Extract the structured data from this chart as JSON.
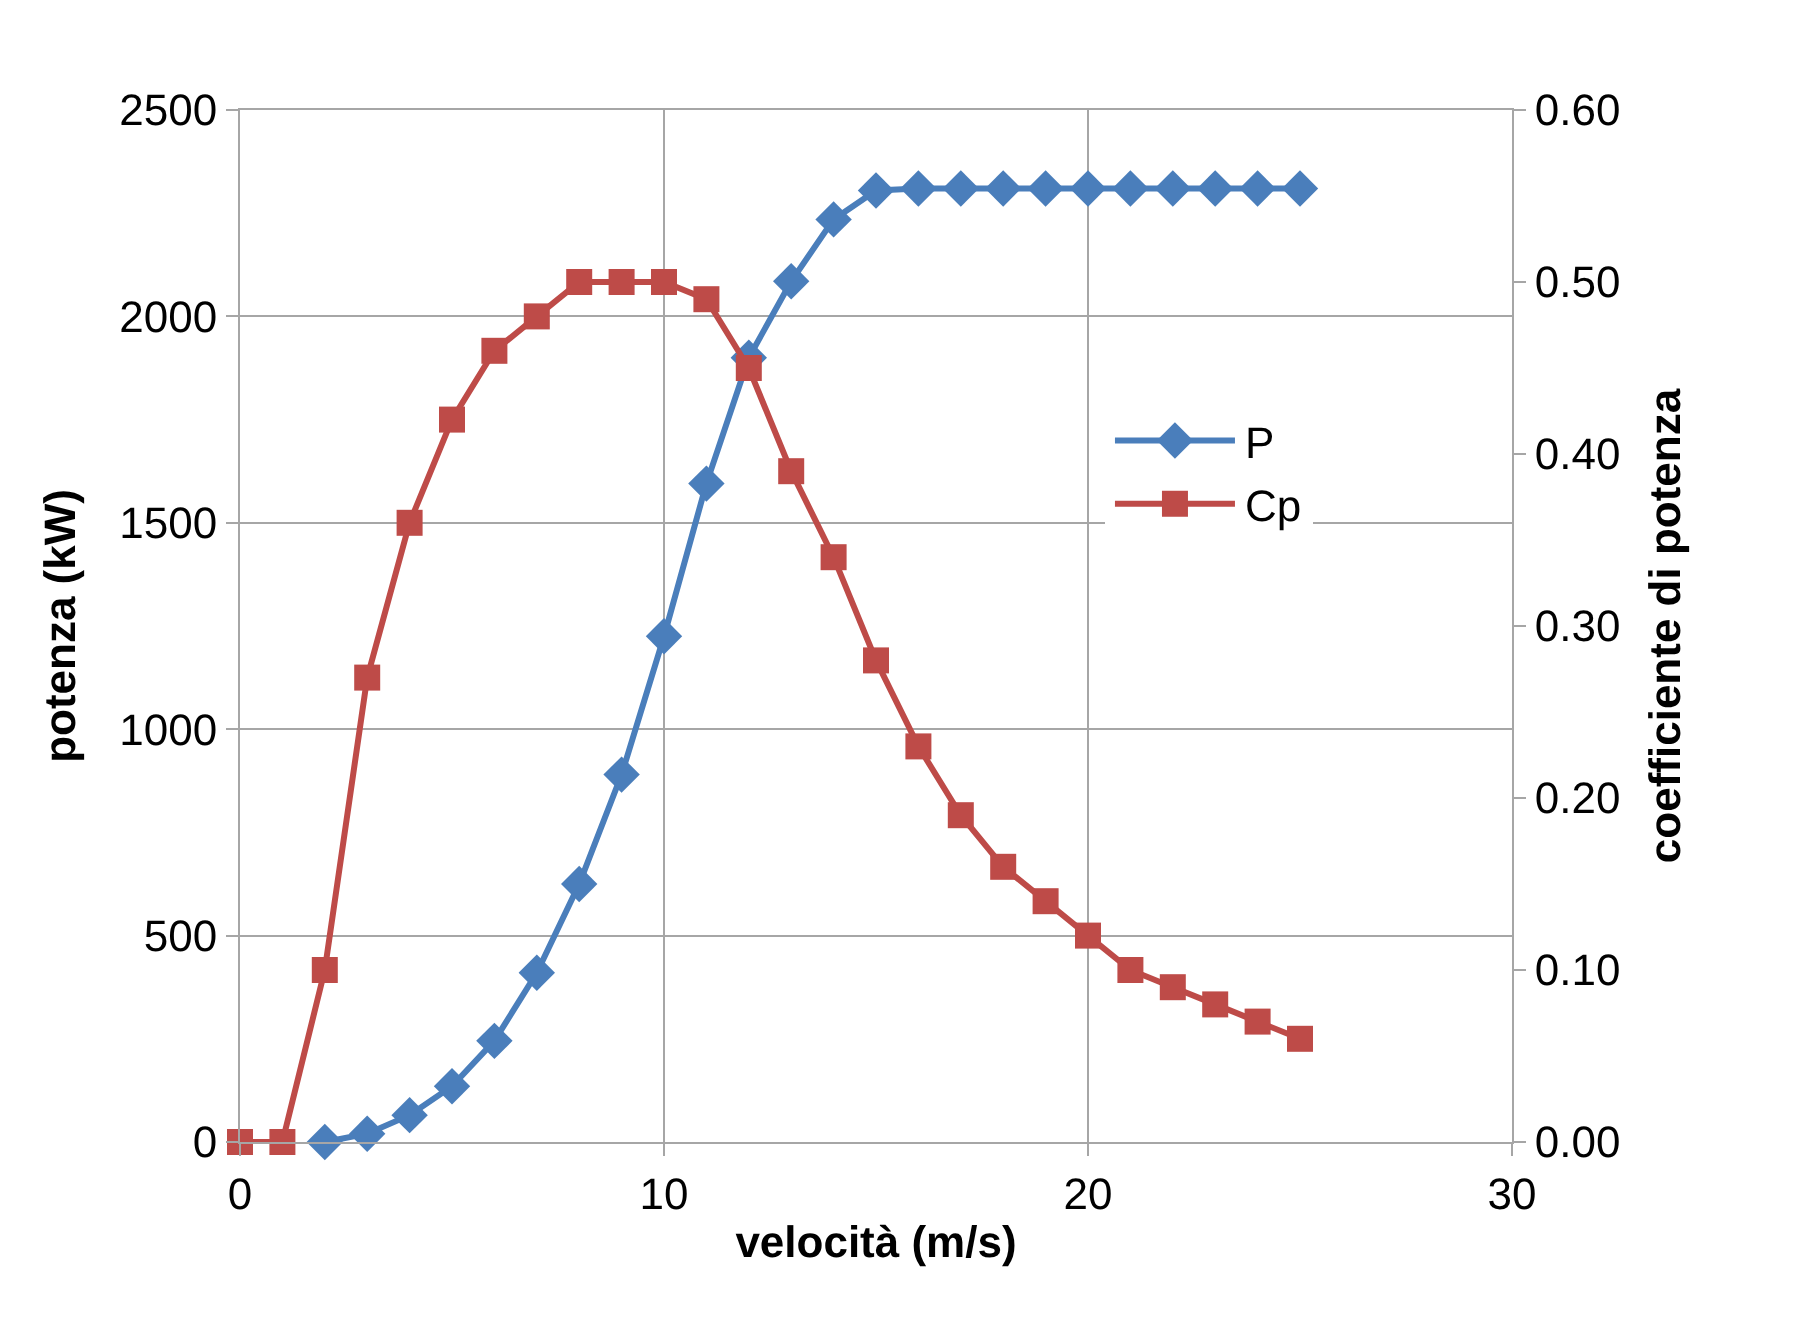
{
  "chart_data": {
    "type": "line",
    "xlabel": "velocità (m/s)",
    "ylabel": "potenza (kW)",
    "y2label": "coefficiente di potenza",
    "xlim": [
      0,
      30
    ],
    "xticks": [
      0,
      10,
      20,
      30
    ],
    "ylim": [
      0,
      2500
    ],
    "yticks": [
      0,
      500,
      1000,
      1500,
      2000,
      2500
    ],
    "y2lim": [
      0,
      0.6
    ],
    "y2ticks": [
      {
        "value": 0,
        "label": "0.00"
      },
      {
        "value": 0.1,
        "label": "0.10"
      },
      {
        "value": 0.2,
        "label": "0.20"
      },
      {
        "value": 0.3,
        "label": "0.30"
      },
      {
        "value": 0.4,
        "label": "0.40"
      },
      {
        "value": 0.5,
        "label": "0.50"
      },
      {
        "value": 0.6,
        "label": "0.60"
      }
    ],
    "grid": true,
    "legend": "right",
    "line_style": "solid",
    "series": [
      {
        "name": "P",
        "color": "#4a7ebb",
        "marker": "diamond",
        "x": [
          2,
          3,
          4,
          5,
          6,
          7,
          8,
          9,
          10,
          11,
          12,
          13,
          14,
          15,
          16,
          17,
          18,
          19,
          20,
          21,
          22,
          23,
          24,
          25
        ],
        "values": [
          0,
          20,
          65,
          135,
          245,
          410,
          625,
          890,
          1225,
          1595,
          1900,
          2085,
          2235,
          2305,
          2310,
          2310,
          2310,
          2310,
          2310,
          2310,
          2310,
          2310,
          2310,
          2310
        ]
      },
      {
        "name": "Cp",
        "color": "#be4b48",
        "marker": "square",
        "axis": "y2",
        "x": [
          0,
          1,
          2,
          3,
          4,
          5,
          6,
          7,
          8,
          9,
          10,
          11,
          12,
          13,
          14,
          15,
          16,
          17,
          18,
          19,
          20,
          21,
          22,
          23,
          24,
          25
        ],
        "values": [
          0,
          0,
          0.1,
          0.27,
          0.36,
          0.42,
          0.46,
          0.48,
          0.5,
          0.5,
          0.5,
          0.49,
          0.45,
          0.39,
          0.34,
          0.28,
          0.23,
          0.19,
          0.16,
          0.14,
          0.12,
          0.1,
          0.09,
          0.08,
          0.07,
          0.06
        ]
      }
    ]
  }
}
